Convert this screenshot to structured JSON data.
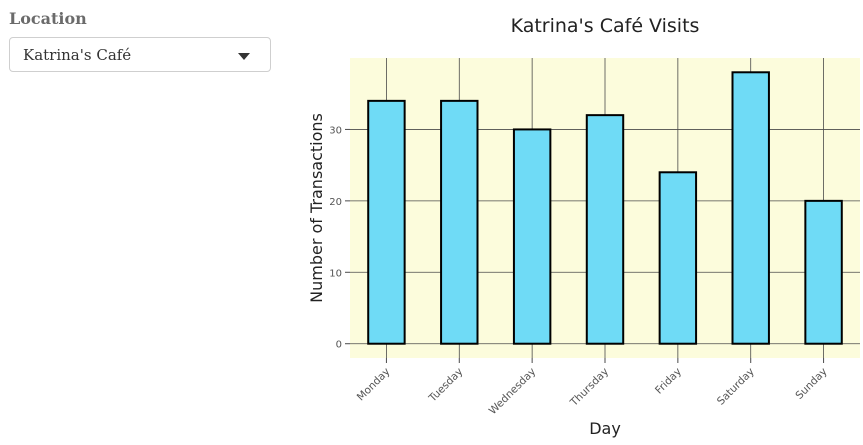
{
  "sidebar": {
    "location_label": "Location",
    "selected_location": "Katrina's Café"
  },
  "icons": {
    "dropdown": "caret-down-icon"
  },
  "colors": {
    "bar_fill": "#6fdbf6",
    "bar_stroke": "#000000",
    "plot_bg": "#fcfcdc"
  },
  "chart_data": {
    "type": "bar",
    "title": "Katrina's Café Visits",
    "xlabel": "Day",
    "ylabel": "Number of Transactions",
    "categories": [
      "Monday",
      "Tuesday",
      "Wednesday",
      "Thursday",
      "Friday",
      "Saturday",
      "Sunday"
    ],
    "values": [
      34,
      34,
      30,
      32,
      24,
      38,
      20
    ],
    "yticks": [
      0,
      10,
      20,
      30
    ],
    "ylim": [
      -2,
      40
    ],
    "grid": true,
    "legend": false
  }
}
